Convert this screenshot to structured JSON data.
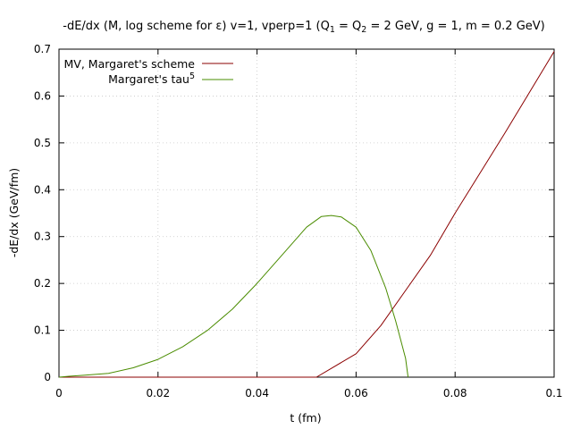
{
  "chart_data": {
    "type": "line",
    "title": {
      "part1": "-dE/dx (M, log scheme for ε) v=1, vperp=1 (Q",
      "sub1": "1",
      "part2": " = Q",
      "sub2": "2",
      "part3": " = 2 GeV, g = 1, m = 0.2 GeV)"
    },
    "xlabel": "t (fm)",
    "ylabel": "-dE/dx (GeV/fm)",
    "xlim": [
      0,
      0.1
    ],
    "ylim": [
      0,
      0.7
    ],
    "x_ticks": [
      "0",
      "0.02",
      "0.04",
      "0.06",
      "0.08",
      "0.1"
    ],
    "y_ticks": [
      "0",
      "0.1",
      "0.2",
      "0.3",
      "0.4",
      "0.5",
      "0.6",
      "0.7"
    ],
    "grid": true,
    "legend_position": "top-left",
    "series": [
      {
        "name": "MV, Margaret's scheme",
        "color": "#8b0000",
        "points": [
          [
            0,
            0
          ],
          [
            0.01,
            0
          ],
          [
            0.02,
            0
          ],
          [
            0.03,
            0
          ],
          [
            0.04,
            0
          ],
          [
            0.05,
            0
          ],
          [
            0.052,
            0
          ],
          [
            0.06,
            0.05
          ],
          [
            0.065,
            0.11
          ],
          [
            0.07,
            0.185
          ],
          [
            0.075,
            0.26
          ],
          [
            0.08,
            0.35
          ],
          [
            0.09,
            0.52
          ],
          [
            0.1,
            0.695
          ]
        ]
      },
      {
        "name": "Margaret's tau",
        "name_sup": "5",
        "color": "#4a8c00",
        "points": [
          [
            0,
            0
          ],
          [
            0.002,
            0.002
          ],
          [
            0.005,
            0.004
          ],
          [
            0.01,
            0.008
          ],
          [
            0.015,
            0.02
          ],
          [
            0.02,
            0.038
          ],
          [
            0.025,
            0.065
          ],
          [
            0.03,
            0.1
          ],
          [
            0.035,
            0.145
          ],
          [
            0.04,
            0.2
          ],
          [
            0.045,
            0.26
          ],
          [
            0.05,
            0.32
          ],
          [
            0.053,
            0.343
          ],
          [
            0.055,
            0.345
          ],
          [
            0.057,
            0.342
          ],
          [
            0.06,
            0.32
          ],
          [
            0.063,
            0.27
          ],
          [
            0.066,
            0.19
          ],
          [
            0.068,
            0.12
          ],
          [
            0.07,
            0.04
          ],
          [
            0.0705,
            0
          ]
        ]
      }
    ]
  }
}
